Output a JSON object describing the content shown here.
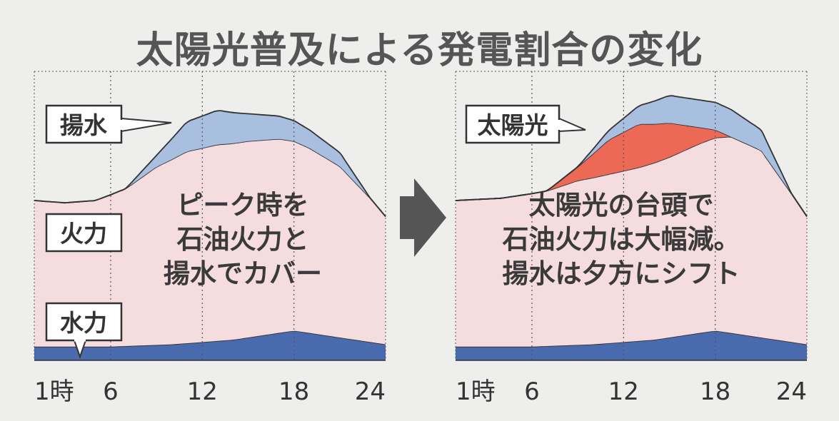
{
  "title": "太陽光普及による発電割合の変化",
  "colors": {
    "pumped": "#a9bfe0",
    "thermal": "#f4dcdf",
    "hydro": "#4a6aae",
    "solar": "#ec6a55",
    "outline": "#333333",
    "grid": "#555555",
    "arrow": "#555555"
  },
  "chart_data": [
    {
      "type": "area",
      "stacked": true,
      "x": [
        1,
        6,
        12,
        18,
        24
      ],
      "x_tick_labels": [
        "1時",
        "6",
        "12",
        "18",
        "24"
      ],
      "xlim": [
        1,
        24
      ],
      "grid": "vertical dotted",
      "callouts": [
        "揚水",
        "火力",
        "水力"
      ],
      "annotation": [
        "ピーク時を",
        "石油火力と",
        "揚水でカバー"
      ],
      "series": [
        {
          "name": "水力",
          "x": [
            1,
            6,
            10,
            14,
            18,
            21,
            24
          ],
          "values": [
            0.6,
            0.6,
            0.7,
            0.9,
            1.3,
            1.0,
            0.7
          ]
        },
        {
          "name": "火力",
          "x": [
            1,
            3,
            5,
            7,
            9,
            11,
            13,
            15,
            17,
            19,
            21,
            23,
            24
          ],
          "values": [
            6.4,
            6.3,
            6.4,
            6.9,
            7.8,
            8.4,
            8.6,
            8.6,
            8.5,
            8.1,
            7.5,
            6.3,
            5.6
          ]
        },
        {
          "name": "揚水",
          "x": [
            1,
            7,
            9,
            11,
            13,
            15,
            17,
            19,
            21,
            23,
            24
          ],
          "values": [
            0,
            0,
            0.5,
            1.3,
            1.5,
            1.2,
            1.0,
            0.8,
            0.6,
            0,
            0
          ]
        }
      ]
    },
    {
      "type": "area",
      "stacked": true,
      "x": [
        1,
        6,
        12,
        18,
        24
      ],
      "x_tick_labels": [
        "1時",
        "6",
        "12",
        "18",
        "24"
      ],
      "xlim": [
        1,
        24
      ],
      "grid": "vertical dotted",
      "callouts": [
        "太陽光"
      ],
      "annotation": [
        "太陽光の台頭で",
        "石油火力は大幅減。",
        "揚水は夕方にシフト"
      ],
      "series": [
        {
          "name": "水力",
          "x": [
            1,
            6,
            10,
            14,
            18,
            21,
            24
          ],
          "values": [
            0.6,
            0.6,
            0.7,
            0.9,
            1.3,
            1.0,
            0.7
          ]
        },
        {
          "name": "火力",
          "x": [
            1,
            4,
            7,
            9,
            11,
            13,
            15,
            17,
            19,
            21,
            23,
            24
          ],
          "values": [
            6.4,
            6.5,
            6.8,
            7.2,
            7.4,
            7.6,
            7.9,
            8.3,
            8.6,
            8.2,
            6.5,
            5.6
          ]
        },
        {
          "name": "太陽光",
          "x": [
            1,
            7,
            9,
            11,
            13,
            15,
            17,
            19,
            21,
            24
          ],
          "values": [
            0,
            0,
            0.6,
            1.5,
            1.9,
            1.5,
            0.7,
            0,
            0,
            0
          ]
        },
        {
          "name": "揚水",
          "x": [
            1,
            9,
            11,
            13,
            15,
            17,
            19,
            21,
            23,
            24
          ],
          "values": [
            0,
            0,
            0.4,
            0.8,
            1.2,
            1.2,
            1.2,
            0.9,
            0,
            0
          ]
        }
      ]
    }
  ]
}
